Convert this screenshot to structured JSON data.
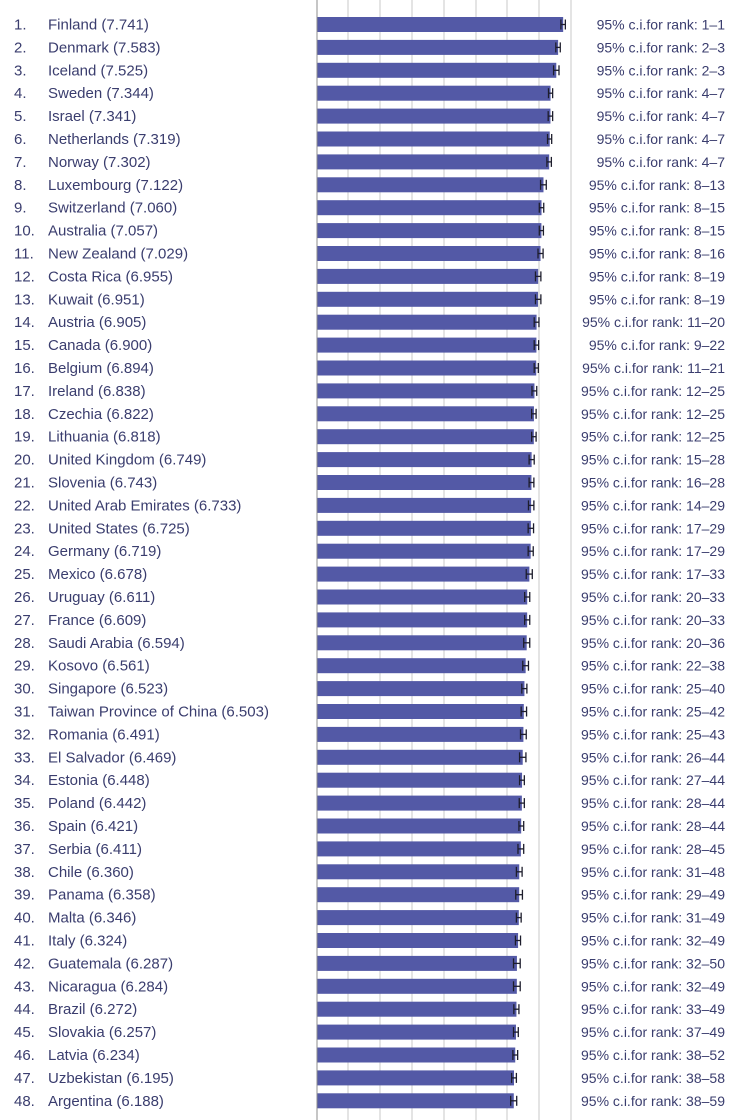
{
  "chart_data": {
    "type": "bar",
    "orientation": "horizontal",
    "title": "",
    "xlabel": "",
    "ylabel": "",
    "grid": true,
    "colors": {
      "bar": "#5359a6",
      "text": "#3a3d6e",
      "whisker": "#1d1d2c",
      "grid": "#c9c9c9"
    },
    "rows": [
      {
        "rank": "1.",
        "country": "Finland",
        "score": "7.741",
        "value": 7.741,
        "ci_low": 7.67,
        "ci_high": 7.81,
        "ci_text": "95% c.i.for rank: 1–1"
      },
      {
        "rank": "2.",
        "country": "Denmark",
        "score": "7.583",
        "value": 7.583,
        "ci_low": 7.51,
        "ci_high": 7.65,
        "ci_text": "95% c.i.for rank: 2–3"
      },
      {
        "rank": "3.",
        "country": "Iceland",
        "score": "7.525",
        "value": 7.525,
        "ci_low": 7.44,
        "ci_high": 7.61,
        "ci_text": "95% c.i.for rank: 2–3"
      },
      {
        "rank": "4.",
        "country": "Sweden",
        "score": "7.344",
        "value": 7.344,
        "ci_low": 7.28,
        "ci_high": 7.41,
        "ci_text": "95% c.i.for rank: 4–7"
      },
      {
        "rank": "5.",
        "country": "Israel",
        "score": "7.341",
        "value": 7.341,
        "ci_low": 7.27,
        "ci_high": 7.41,
        "ci_text": "95% c.i.for rank: 4–7"
      },
      {
        "rank": "6.",
        "country": "Netherlands",
        "score": "7.319",
        "value": 7.319,
        "ci_low": 7.25,
        "ci_high": 7.38,
        "ci_text": "95% c.i.for rank: 4–7"
      },
      {
        "rank": "7.",
        "country": "Norway",
        "score": "7.302",
        "value": 7.302,
        "ci_low": 7.23,
        "ci_high": 7.37,
        "ci_text": "95% c.i.for rank: 4–7"
      },
      {
        "rank": "8.",
        "country": "Luxembourg",
        "score": "7.122",
        "value": 7.122,
        "ci_low": 7.03,
        "ci_high": 7.21,
        "ci_text": "95% c.i.for rank: 8–13"
      },
      {
        "rank": "9.",
        "country": "Switzerland",
        "score": "7.060",
        "value": 7.06,
        "ci_low": 6.99,
        "ci_high": 7.13,
        "ci_text": "95% c.i.for rank: 8–15"
      },
      {
        "rank": "10.",
        "country": "Australia",
        "score": "7.057",
        "value": 7.057,
        "ci_low": 6.99,
        "ci_high": 7.12,
        "ci_text": "95% c.i.for rank: 8–15"
      },
      {
        "rank": "11.",
        "country": "New Zealand",
        "score": "7.029",
        "value": 7.029,
        "ci_low": 6.95,
        "ci_high": 7.11,
        "ci_text": "95% c.i.for rank: 8–16"
      },
      {
        "rank": "12.",
        "country": "Costa Rica",
        "score": "6.955",
        "value": 6.955,
        "ci_low": 6.87,
        "ci_high": 7.04,
        "ci_text": "95% c.i.for rank: 8–19"
      },
      {
        "rank": "13.",
        "country": "Kuwait",
        "score": "6.951",
        "value": 6.951,
        "ci_low": 6.87,
        "ci_high": 7.04,
        "ci_text": "95% c.i.for rank: 8–19"
      },
      {
        "rank": "14.",
        "country": "Austria",
        "score": "6.905",
        "value": 6.905,
        "ci_low": 6.83,
        "ci_high": 6.98,
        "ci_text": "95% c.i.for rank: 11–20"
      },
      {
        "rank": "15.",
        "country": "Canada",
        "score": "6.900",
        "value": 6.9,
        "ci_low": 6.83,
        "ci_high": 6.97,
        "ci_text": "95% c.i.for rank: 9–22"
      },
      {
        "rank": "16.",
        "country": "Belgium",
        "score": "6.894",
        "value": 6.894,
        "ci_low": 6.83,
        "ci_high": 6.96,
        "ci_text": "95% c.i.for rank: 11–21"
      },
      {
        "rank": "17.",
        "country": "Ireland",
        "score": "6.838",
        "value": 6.838,
        "ci_low": 6.76,
        "ci_high": 6.91,
        "ci_text": "95% c.i.for rank: 12–25"
      },
      {
        "rank": "18.",
        "country": "Czechia",
        "score": "6.822",
        "value": 6.822,
        "ci_low": 6.75,
        "ci_high": 6.89,
        "ci_text": "95% c.i.for rank: 12–25"
      },
      {
        "rank": "19.",
        "country": "Lithuania",
        "score": "6.818",
        "value": 6.818,
        "ci_low": 6.75,
        "ci_high": 6.89,
        "ci_text": "95% c.i.for rank: 12–25"
      },
      {
        "rank": "20.",
        "country": "United Kingdom",
        "score": "6.749",
        "value": 6.749,
        "ci_low": 6.67,
        "ci_high": 6.83,
        "ci_text": "95% c.i.for rank: 15–28"
      },
      {
        "rank": "21.",
        "country": "Slovenia",
        "score": "6.743",
        "value": 6.743,
        "ci_low": 6.67,
        "ci_high": 6.82,
        "ci_text": "95% c.i.for rank: 16–28"
      },
      {
        "rank": "22.",
        "country": "United Arab Emirates",
        "score": "6.733",
        "value": 6.733,
        "ci_low": 6.65,
        "ci_high": 6.82,
        "ci_text": "95% c.i.for rank: 14–29"
      },
      {
        "rank": "23.",
        "country": "United States",
        "score": "6.725",
        "value": 6.725,
        "ci_low": 6.64,
        "ci_high": 6.81,
        "ci_text": "95% c.i.for rank: 17–29"
      },
      {
        "rank": "24.",
        "country": "Germany",
        "score": "6.719",
        "value": 6.719,
        "ci_low": 6.64,
        "ci_high": 6.8,
        "ci_text": "95% c.i.for rank: 17–29"
      },
      {
        "rank": "25.",
        "country": "Mexico",
        "score": "6.678",
        "value": 6.678,
        "ci_low": 6.58,
        "ci_high": 6.77,
        "ci_text": "95% c.i.for rank: 17–33"
      },
      {
        "rank": "26.",
        "country": "Uruguay",
        "score": "6.611",
        "value": 6.611,
        "ci_low": 6.53,
        "ci_high": 6.69,
        "ci_text": "95% c.i.for rank: 20–33"
      },
      {
        "rank": "27.",
        "country": "France",
        "score": "6.609",
        "value": 6.609,
        "ci_low": 6.53,
        "ci_high": 6.69,
        "ci_text": "95% c.i.for rank: 20–33"
      },
      {
        "rank": "28.",
        "country": "Saudi Arabia",
        "score": "6.594",
        "value": 6.594,
        "ci_low": 6.5,
        "ci_high": 6.69,
        "ci_text": "95% c.i.for rank: 20–36"
      },
      {
        "rank": "29.",
        "country": "Kosovo",
        "score": "6.561",
        "value": 6.561,
        "ci_low": 6.47,
        "ci_high": 6.65,
        "ci_text": "95% c.i.for rank: 22–38"
      },
      {
        "rank": "30.",
        "country": "Singapore",
        "score": "6.523",
        "value": 6.523,
        "ci_low": 6.44,
        "ci_high": 6.6,
        "ci_text": "95% c.i.for rank: 25–40"
      },
      {
        "rank": "31.",
        "country": "Taiwan Province of China",
        "score": "6.503",
        "value": 6.503,
        "ci_low": 6.42,
        "ci_high": 6.59,
        "ci_text": "95% c.i.for rank: 25–42"
      },
      {
        "rank": "32.",
        "country": "Romania",
        "score": "6.491",
        "value": 6.491,
        "ci_low": 6.4,
        "ci_high": 6.58,
        "ci_text": "95% c.i.for rank: 25–43"
      },
      {
        "rank": "33.",
        "country": "El Salvador",
        "score": "6.469",
        "value": 6.469,
        "ci_low": 6.37,
        "ci_high": 6.57,
        "ci_text": "95% c.i.for rank: 26–44"
      },
      {
        "rank": "34.",
        "country": "Estonia",
        "score": "6.448",
        "value": 6.448,
        "ci_low": 6.37,
        "ci_high": 6.52,
        "ci_text": "95% c.i.for rank: 27–44"
      },
      {
        "rank": "35.",
        "country": "Poland",
        "score": "6.442",
        "value": 6.442,
        "ci_low": 6.36,
        "ci_high": 6.52,
        "ci_text": "95% c.i.for rank: 28–44"
      },
      {
        "rank": "36.",
        "country": "Spain",
        "score": "6.421",
        "value": 6.421,
        "ci_low": 6.35,
        "ci_high": 6.5,
        "ci_text": "95% c.i.for rank: 28–44"
      },
      {
        "rank": "37.",
        "country": "Serbia",
        "score": "6.411",
        "value": 6.411,
        "ci_low": 6.32,
        "ci_high": 6.5,
        "ci_text": "95% c.i.for rank: 28–45"
      },
      {
        "rank": "38.",
        "country": "Chile",
        "score": "6.360",
        "value": 6.36,
        "ci_low": 6.27,
        "ci_high": 6.45,
        "ci_text": "95% c.i.for rank: 31–48"
      },
      {
        "rank": "39.",
        "country": "Panama",
        "score": "6.358",
        "value": 6.358,
        "ci_low": 6.25,
        "ci_high": 6.46,
        "ci_text": "95% c.i.for rank: 29–49"
      },
      {
        "rank": "40.",
        "country": "Malta",
        "score": "6.346",
        "value": 6.346,
        "ci_low": 6.27,
        "ci_high": 6.42,
        "ci_text": "95% c.i.for rank: 31–49"
      },
      {
        "rank": "41.",
        "country": "Italy",
        "score": "6.324",
        "value": 6.324,
        "ci_low": 6.24,
        "ci_high": 6.4,
        "ci_text": "95% c.i.for rank: 32–49"
      },
      {
        "rank": "42.",
        "country": "Guatemala",
        "score": "6.287",
        "value": 6.287,
        "ci_low": 6.18,
        "ci_high": 6.39,
        "ci_text": "95% c.i.for rank: 32–50"
      },
      {
        "rank": "43.",
        "country": "Nicaragua",
        "score": "6.284",
        "value": 6.284,
        "ci_low": 6.18,
        "ci_high": 6.39,
        "ci_text": "95% c.i.for rank: 32–49"
      },
      {
        "rank": "44.",
        "country": "Brazil",
        "score": "6.272",
        "value": 6.272,
        "ci_low": 6.19,
        "ci_high": 6.35,
        "ci_text": "95% c.i.for rank: 33–49"
      },
      {
        "rank": "45.",
        "country": "Slovakia",
        "score": "6.257",
        "value": 6.257,
        "ci_low": 6.18,
        "ci_high": 6.33,
        "ci_text": "95% c.i.for rank: 37–49"
      },
      {
        "rank": "46.",
        "country": "Latvia",
        "score": "6.234",
        "value": 6.234,
        "ci_low": 6.16,
        "ci_high": 6.31,
        "ci_text": "95% c.i.for rank: 38–52"
      },
      {
        "rank": "47.",
        "country": "Uzbekistan",
        "score": "6.195",
        "value": 6.195,
        "ci_low": 6.12,
        "ci_high": 6.27,
        "ci_text": "95% c.i.for rank: 38–58"
      },
      {
        "rank": "48.",
        "country": "Argentina",
        "score": "6.188",
        "value": 6.188,
        "ci_low": 6.09,
        "ci_high": 6.28,
        "ci_text": "95% c.i.for rank: 38–59"
      }
    ]
  }
}
